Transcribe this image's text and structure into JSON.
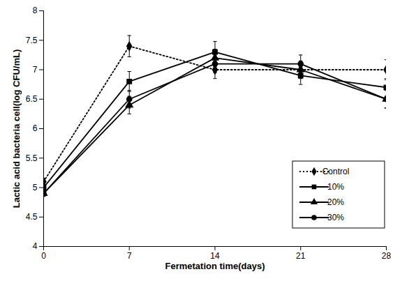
{
  "chart_data": {
    "type": "line",
    "x_label": "Fermetation time(days)",
    "y_label": "Lactic acid bacteria cell(log CFU/mL)",
    "x": [
      0,
      7,
      14,
      21,
      28
    ],
    "xlim": [
      0,
      28
    ],
    "xticks": [
      0,
      7,
      14,
      21,
      28
    ],
    "ylim": [
      4,
      8
    ],
    "yticks": [
      4,
      4.5,
      5,
      5.5,
      6,
      6.5,
      7,
      7.5,
      8
    ],
    "grid": false,
    "legend": "lower right",
    "series": [
      {
        "name": "Control",
        "color": "#000000",
        "marker": "diamond",
        "line_style": "dotted",
        "values": [
          5.1,
          7.4,
          7.0,
          7.0,
          7.0
        ],
        "errors": [
          0.05,
          0.18,
          0.15,
          0.15,
          0.17
        ]
      },
      {
        "name": "10%",
        "color": "#000000",
        "marker": "square",
        "line_style": "solid",
        "values": [
          5.0,
          6.8,
          7.3,
          6.9,
          6.7
        ],
        "errors": [
          0.05,
          0.17,
          0.18,
          0.15,
          0.15
        ]
      },
      {
        "name": "20%",
        "color": "#000000",
        "marker": "triangle",
        "line_style": "solid",
        "values": [
          4.9,
          6.4,
          7.2,
          7.0,
          6.5
        ],
        "errors": [
          0.05,
          0.15,
          0.15,
          0.12,
          0.15
        ]
      },
      {
        "name": "30%",
        "color": "#000000",
        "marker": "circle",
        "line_style": "solid",
        "values": [
          4.9,
          6.5,
          7.1,
          7.1,
          6.5
        ],
        "errors": [
          0.05,
          0.15,
          0.15,
          0.15,
          0.15
        ]
      }
    ]
  }
}
